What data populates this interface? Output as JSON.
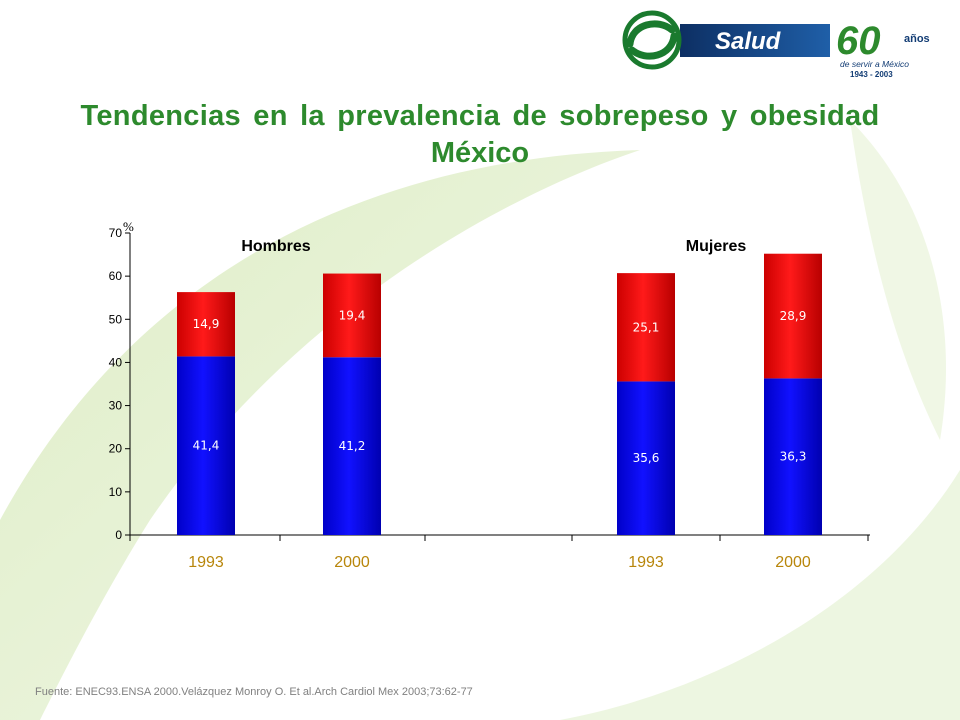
{
  "brand": {
    "name": "Salud",
    "years": "60",
    "years_suffix": "años",
    "tagline": "de servir a México",
    "span": "1943 - 2003",
    "colors": {
      "green": "#2d8a2d",
      "navy": "#123c74",
      "lime": "#8cc63f"
    }
  },
  "title": {
    "line1": "Tendencias en la prevalencia de sobrepeso y obesidad",
    "line2": "México"
  },
  "source": "Fuente: ENEC93.ENSA 2000.Velázquez Monroy O. Et al.Arch Cardiol Mex 2003;73:62-77",
  "chart_data": {
    "type": "bar",
    "stacked": true,
    "unit": "%",
    "ylim": [
      0,
      70
    ],
    "yticks": [
      0,
      10,
      20,
      30,
      40,
      50,
      60,
      70
    ],
    "grid": false,
    "groups": [
      {
        "label": "Hombres",
        "categories": [
          "1993",
          "2000"
        ]
      },
      {
        "label": "Mujeres",
        "categories": [
          "1993",
          "2000"
        ]
      }
    ],
    "categories": [
      "1993",
      "2000",
      "1993",
      "2000"
    ],
    "series": [
      {
        "values": [
          41.4,
          41.2,
          35.6,
          36.3
        ],
        "labels": [
          "41,4",
          "41,2",
          "35,6",
          "36,3"
        ],
        "color": "#0000ee"
      },
      {
        "values": [
          14.9,
          19.4,
          25.1,
          28.9
        ],
        "labels": [
          "14,9",
          "19,4",
          "25,1",
          "28,9"
        ],
        "color": "#ee0000"
      }
    ],
    "tick_label_color": "#b8860b"
  }
}
